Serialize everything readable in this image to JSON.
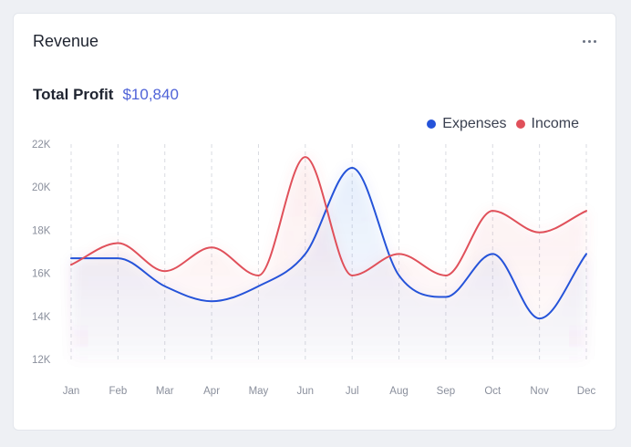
{
  "card": {
    "title": "Revenue",
    "menu_icon": "more-horizontal-icon",
    "profit_label": "Total Profit",
    "profit_value": "$10,840"
  },
  "colors": {
    "expenses": "#2553d9",
    "income": "#e0505a",
    "accent": "#4f63d8",
    "grid": "#d9dbe1",
    "tick": "#8a8f9c"
  },
  "chart_data": {
    "type": "line",
    "categories": [
      "Jan",
      "Feb",
      "Mar",
      "Apr",
      "May",
      "Jun",
      "Jul",
      "Aug",
      "Sep",
      "Oct",
      "Nov",
      "Dec"
    ],
    "series": [
      {
        "name": "Expenses",
        "values": [
          16.7,
          16.7,
          15.4,
          14.7,
          15.4,
          16.9,
          20.9,
          15.9,
          14.9,
          16.9,
          13.9,
          16.9
        ]
      },
      {
        "name": "Income",
        "values": [
          16.4,
          17.4,
          16.1,
          17.2,
          15.9,
          21.4,
          15.9,
          16.9,
          15.9,
          18.9,
          17.9,
          18.9
        ]
      }
    ],
    "ylim": [
      12,
      22
    ],
    "yticks": [
      12,
      14,
      16,
      18,
      20,
      22
    ],
    "ytick_labels": [
      "12K",
      "14K",
      "16K",
      "18K",
      "20K",
      "22K"
    ],
    "grid": "vertical-dashed",
    "legend": "top-right"
  }
}
